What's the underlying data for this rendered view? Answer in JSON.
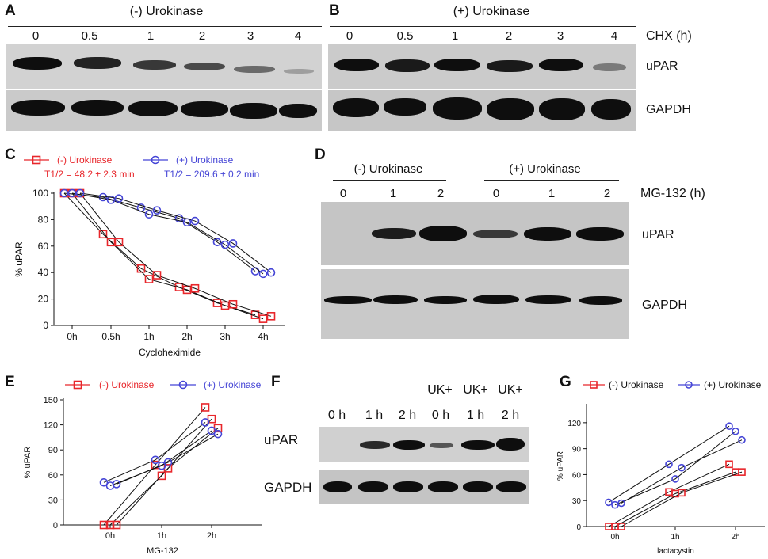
{
  "panels": {
    "A": "A",
    "B": "B",
    "C": "C",
    "D": "D",
    "E": "E",
    "F": "F",
    "G": "G"
  },
  "panel_A": {
    "header": "(-) Urokinase",
    "lanes": [
      "0",
      "0.5",
      "1",
      "2",
      "3",
      "4"
    ]
  },
  "panel_B": {
    "header": "(+) Urokinase",
    "lanes": [
      "0",
      "0.5",
      "1",
      "2",
      "3",
      "4"
    ],
    "axis": "CHX (h)"
  },
  "blot_labels_AB": {
    "uPAR": "uPAR",
    "GAPDH": "GAPDH"
  },
  "panel_D": {
    "header_minus": "(-) Urokinase",
    "header_plus": "(+) Urokinase",
    "lanes": [
      "0",
      "1",
      "2",
      "0",
      "1",
      "2"
    ],
    "axis": "MG-132 (h)",
    "uPAR": "uPAR",
    "GAPDH": "GAPDH"
  },
  "panel_F": {
    "top": [
      "UK+",
      "UK+",
      "UK+"
    ],
    "lanes": [
      "0 h",
      "1 h",
      "2 h",
      "0 h",
      "1 h",
      "2 h"
    ],
    "uPAR": "uPAR",
    "GAPDH": "GAPDH"
  },
  "colors": {
    "minus": "#e8262b",
    "plus": "#4545d6"
  },
  "chart_data": [
    {
      "panel": "C",
      "type": "line",
      "categories": [
        "0h",
        "0.5h",
        "1h",
        "2h",
        "3h",
        "4h"
      ],
      "xlabel": "Cycloheximide",
      "ylabel": "% uPAR",
      "ylim": [
        0,
        100
      ],
      "yticks": [
        "0",
        "20",
        "40",
        "60",
        "80",
        "100"
      ],
      "series": [
        {
          "name": "(-) Urokinase",
          "note": "T1/2 = 48.2 ± 2.3 min",
          "replicates": [
            [
              100,
              69,
              43,
              29,
              17,
              8
            ],
            [
              100,
              63,
              35,
              27,
              15,
              5
            ],
            [
              100,
              63,
              38,
              28,
              16,
              7
            ]
          ]
        },
        {
          "name": "(+) Urokinase",
          "note": "T1/2 = 209.6 ± 0.2 min",
          "replicates": [
            [
              100,
              97,
              89,
              81,
              63,
              41
            ],
            [
              100,
              95,
              84,
              78,
              61,
              39
            ],
            [
              100,
              96,
              87,
              79,
              62,
              40
            ]
          ]
        }
      ]
    },
    {
      "panel": "E",
      "type": "line",
      "categories": [
        "0h",
        "1h",
        "2h"
      ],
      "xlabel": "MG-132",
      "ylabel": "% uPAR",
      "ylim": [
        0,
        150
      ],
      "yticks": [
        "0",
        "30",
        "60",
        "90",
        "120",
        "150"
      ],
      "series": [
        {
          "name": "(-) Urokinase",
          "replicates": [
            [
              0,
              72,
              141
            ],
            [
              0,
              59,
              127
            ],
            [
              0,
              68,
              116
            ]
          ]
        },
        {
          "name": "(+) Urokinase",
          "replicates": [
            [
              51,
              78,
              123
            ],
            [
              47,
              71,
              113
            ],
            [
              49,
              75,
              109
            ]
          ]
        }
      ]
    },
    {
      "panel": "G",
      "type": "line",
      "categories": [
        "0h",
        "1h",
        "2h"
      ],
      "xlabel": "lactacystin",
      "ylabel": "% uPAR",
      "ylim": [
        0,
        140
      ],
      "yticks": [
        "0",
        "30",
        "60",
        "90",
        "120"
      ],
      "series": [
        {
          "name": "(-) Urokinase",
          "replicates": [
            [
              0,
              40,
              72
            ],
            [
              0,
              38,
              63
            ],
            [
              0,
              39,
              63
            ]
          ]
        },
        {
          "name": "(+) Urokinase",
          "replicates": [
            [
              28,
              72,
              116
            ],
            [
              25,
              55,
              110
            ],
            [
              27,
              68,
              100
            ]
          ]
        }
      ]
    }
  ]
}
